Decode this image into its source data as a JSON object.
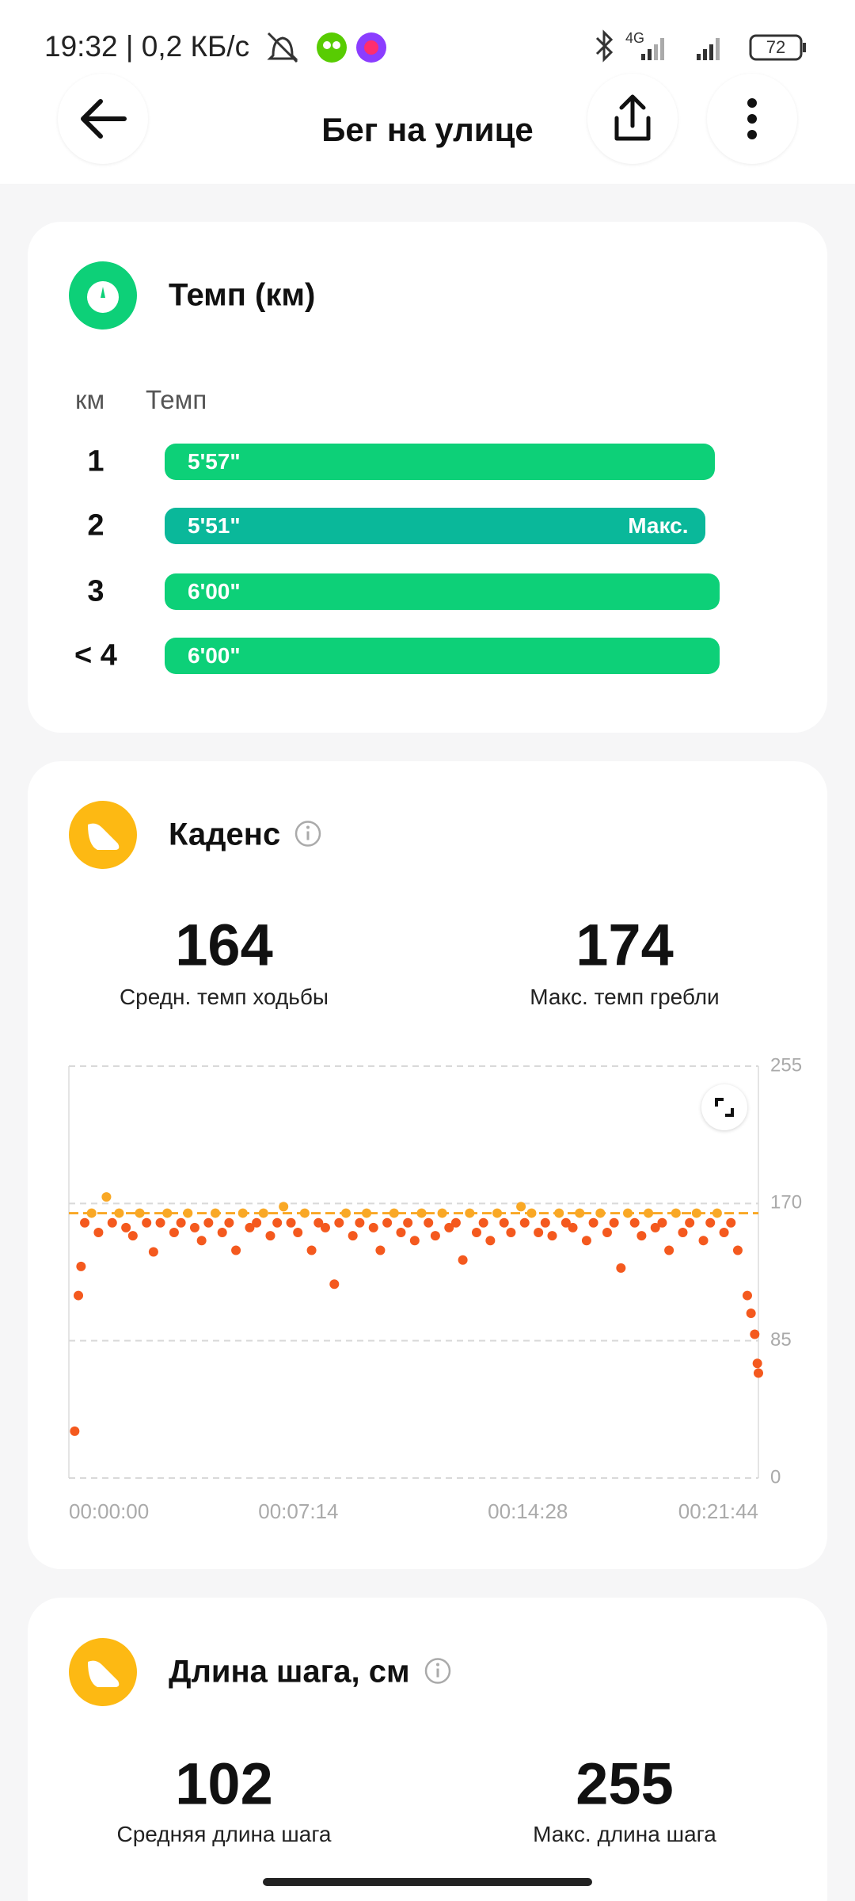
{
  "status_bar": {
    "time": "19:32 | 0,2 КБ/с",
    "network": "4G",
    "battery": "72"
  },
  "header": {
    "title": "Бег на улице"
  },
  "pace": {
    "title": "Темп (км)",
    "columns": [
      "км",
      "Темп"
    ],
    "xlim": [
      0,
      360
    ],
    "max_label": "Макс.",
    "colors": [
      "#0dd078",
      "#0ab89a"
    ],
    "rows": [
      {
        "km": "1",
        "pace": {
          "value": 357,
          "label": "5'57\""
        }
      },
      {
        "km": "2",
        "pace": {
          "value": 351,
          "label": "5'51\""
        },
        "max": true
      },
      {
        "km": "3",
        "pace": {
          "value": 360,
          "label": "6'00\""
        }
      },
      {
        "km": "< 4",
        "pace": {
          "value": 360,
          "label": "6'00\""
        }
      }
    ]
  },
  "cadence": {
    "title": "Каденс",
    "stats": [
      {
        "value": 164,
        "caption": "Средн. темп ходьбы"
      },
      {
        "value": 174,
        "caption": "Макс. темп гребли"
      }
    ],
    "chart_data": {
      "type": "scatter",
      "x": [
        11,
        18,
        23,
        30,
        43,
        56,
        71,
        82,
        95,
        108,
        121,
        134,
        147,
        160,
        173,
        186,
        199,
        212,
        225,
        238,
        251,
        264,
        277,
        290,
        303,
        316,
        329,
        342,
        355,
        368,
        381,
        394,
        406,
        420,
        433,
        446,
        459,
        472,
        485,
        502,
        511,
        524,
        537,
        550,
        563,
        576,
        589,
        602,
        615,
        628,
        641,
        654,
        667,
        680,
        693,
        706,
        719,
        732,
        745,
        758,
        771,
        784,
        797,
        810,
        823,
        836,
        855,
        862,
        875,
        888,
        901,
        914,
        927,
        940,
        953,
        966,
        979,
        992,
        1005,
        1018,
        1031,
        1044,
        1057,
        1070,
        1083,
        1096,
        1109,
        1122,
        1135,
        1148,
        1161,
        1174,
        1187,
        1200,
        1213,
        1226,
        1239,
        1252,
        1265,
        1283,
        1290,
        1297,
        1302,
        1304
      ],
      "values": [
        29,
        113,
        131,
        158,
        164,
        152,
        174,
        158,
        164,
        155,
        150,
        164,
        158,
        140,
        158,
        164,
        152,
        158,
        164,
        155,
        147,
        158,
        164,
        152,
        158,
        141,
        164,
        155,
        158,
        164,
        150,
        158,
        168,
        158,
        152,
        164,
        141,
        158,
        155,
        120,
        158,
        164,
        150,
        158,
        164,
        155,
        141,
        158,
        164,
        152,
        158,
        147,
        164,
        158,
        150,
        164,
        155,
        158,
        135,
        164,
        152,
        158,
        147,
        164,
        158,
        152,
        168,
        158,
        164,
        152,
        158,
        150,
        164,
        158,
        155,
        164,
        147,
        158,
        164,
        152,
        158,
        130,
        164,
        158,
        150,
        164,
        155,
        158,
        141,
        164,
        152,
        158,
        164,
        147,
        158,
        164,
        152,
        158,
        141,
        113,
        102,
        89,
        71,
        65
      ],
      "xlim": [
        0,
        1304
      ],
      "ylim": [
        0,
        255
      ],
      "yticks": [
        0,
        85,
        170,
        255
      ],
      "xticks": [
        {
          "value": 0,
          "label": "00:00:00"
        },
        {
          "value": 434,
          "label": "00:07:14"
        },
        {
          "value": 868,
          "label": "00:14:28"
        },
        {
          "value": 1304,
          "label": "00:21:44"
        }
      ],
      "colors": [
        "#f9a825",
        "#f4591e"
      ],
      "grid": true,
      "average_line": true
    }
  },
  "stride": {
    "title": "Длина шага, см",
    "stats": [
      {
        "value": 102,
        "caption": "Средняя длина шага"
      },
      {
        "value": 255,
        "caption": "Макс. длина шага"
      }
    ]
  }
}
